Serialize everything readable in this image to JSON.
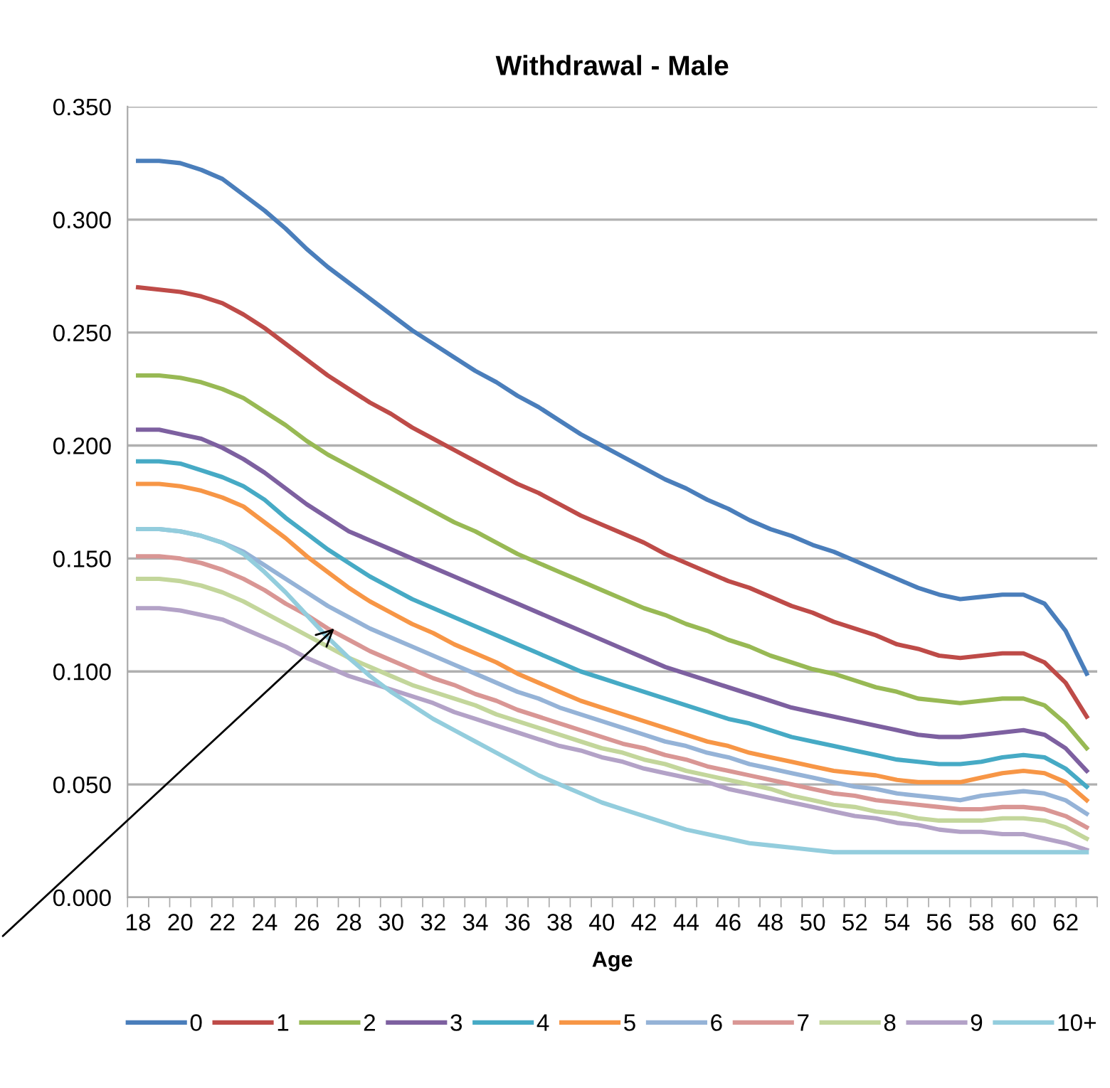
{
  "chart_data": {
    "type": "line",
    "title": "Withdrawal - Male",
    "xlabel": "Age",
    "categories": [
      "18",
      null,
      "20",
      null,
      "22",
      null,
      "24",
      null,
      "26",
      null,
      "28",
      null,
      "30",
      null,
      "32",
      null,
      "34",
      null,
      "36",
      null,
      "38",
      null,
      "40",
      null,
      "42",
      null,
      "44",
      null,
      "46",
      null,
      "48",
      null,
      "50",
      null,
      "52",
      null,
      "54",
      null,
      "56",
      null,
      "58",
      null,
      "60",
      null,
      "62",
      null
    ],
    "ylim": [
      0,
      0.35
    ],
    "yticks": [
      {
        "value": 0,
        "label": "0.000"
      },
      {
        "value": 0.05,
        "label": "0.050"
      },
      {
        "value": 0.1,
        "label": "0.100"
      },
      {
        "value": 0.15,
        "label": "0.150"
      },
      {
        "value": 0.2,
        "label": "0.200"
      },
      {
        "value": 0.25,
        "label": "0.250"
      },
      {
        "value": 0.3,
        "label": "0.300"
      },
      {
        "value": 0.35,
        "label": "0.350"
      }
    ],
    "grid": "y",
    "legend": "bottom",
    "marker": "none",
    "line_style": "solid",
    "series": [
      {
        "name": "0",
        "color": "#4a7ebb",
        "values": [
          0.326,
          0.326,
          0.325,
          0.322,
          0.318,
          0.311,
          0.304,
          0.296,
          0.287,
          0.279,
          0.272,
          0.265,
          0.258,
          0.251,
          0.245,
          0.239,
          0.233,
          0.228,
          0.222,
          0.217,
          0.211,
          0.205,
          0.2,
          0.195,
          0.19,
          0.185,
          0.181,
          0.176,
          0.172,
          0.167,
          0.163,
          0.16,
          0.156,
          0.153,
          0.149,
          0.145,
          0.141,
          0.137,
          0.134,
          0.132,
          0.133,
          0.134,
          0.134,
          0.13,
          0.118,
          0.099
        ]
      },
      {
        "name": "1",
        "color": "#be4b48",
        "values": [
          0.27,
          0.269,
          0.268,
          0.266,
          0.263,
          0.258,
          0.252,
          0.245,
          0.238,
          0.231,
          0.225,
          0.219,
          0.214,
          0.208,
          0.203,
          0.198,
          0.193,
          0.188,
          0.183,
          0.179,
          0.174,
          0.169,
          0.165,
          0.161,
          0.157,
          0.152,
          0.148,
          0.144,
          0.14,
          0.137,
          0.133,
          0.129,
          0.126,
          0.122,
          0.119,
          0.116,
          0.112,
          0.11,
          0.107,
          0.106,
          0.107,
          0.108,
          0.108,
          0.104,
          0.095,
          0.08
        ]
      },
      {
        "name": "2",
        "color": "#98b954",
        "values": [
          0.231,
          0.231,
          0.23,
          0.228,
          0.225,
          0.221,
          0.215,
          0.209,
          0.202,
          0.196,
          0.191,
          0.186,
          0.181,
          0.176,
          0.171,
          0.166,
          0.162,
          0.157,
          0.152,
          0.148,
          0.144,
          0.14,
          0.136,
          0.132,
          0.128,
          0.125,
          0.121,
          0.118,
          0.114,
          0.111,
          0.107,
          0.104,
          0.101,
          0.099,
          0.096,
          0.093,
          0.091,
          0.088,
          0.087,
          0.086,
          0.087,
          0.088,
          0.088,
          0.085,
          0.077,
          0.066
        ]
      },
      {
        "name": "3",
        "color": "#7d60a0",
        "values": [
          0.207,
          0.207,
          0.205,
          0.203,
          0.199,
          0.194,
          0.188,
          0.181,
          0.174,
          0.168,
          0.162,
          0.158,
          0.154,
          0.15,
          0.146,
          0.142,
          0.138,
          0.134,
          0.13,
          0.126,
          0.122,
          0.118,
          0.114,
          0.11,
          0.106,
          0.102,
          0.099,
          0.096,
          0.093,
          0.09,
          0.087,
          0.084,
          0.082,
          0.08,
          0.078,
          0.076,
          0.074,
          0.072,
          0.071,
          0.071,
          0.072,
          0.073,
          0.074,
          0.072,
          0.066,
          0.056
        ]
      },
      {
        "name": "4",
        "color": "#46aac5",
        "values": [
          0.193,
          0.193,
          0.192,
          0.189,
          0.186,
          0.182,
          0.176,
          0.168,
          0.161,
          0.154,
          0.148,
          0.142,
          0.137,
          0.132,
          0.128,
          0.124,
          0.12,
          0.116,
          0.112,
          0.108,
          0.104,
          0.1,
          0.097,
          0.094,
          0.091,
          0.088,
          0.085,
          0.082,
          0.079,
          0.077,
          0.074,
          0.071,
          0.069,
          0.067,
          0.065,
          0.063,
          0.061,
          0.06,
          0.059,
          0.059,
          0.06,
          0.062,
          0.063,
          0.062,
          0.057,
          0.049
        ]
      },
      {
        "name": "5",
        "color": "#f79646",
        "values": [
          0.183,
          0.183,
          0.182,
          0.18,
          0.177,
          0.173,
          0.166,
          0.159,
          0.151,
          0.144,
          0.137,
          0.131,
          0.126,
          0.121,
          0.117,
          0.112,
          0.108,
          0.104,
          0.099,
          0.095,
          0.091,
          0.087,
          0.084,
          0.081,
          0.078,
          0.075,
          0.072,
          0.069,
          0.067,
          0.064,
          0.062,
          0.06,
          0.058,
          0.056,
          0.055,
          0.054,
          0.052,
          0.051,
          0.051,
          0.051,
          0.053,
          0.055,
          0.056,
          0.055,
          0.051,
          0.043
        ]
      },
      {
        "name": "6",
        "color": "#95b3d7",
        "values": [
          0.163,
          0.163,
          0.162,
          0.16,
          0.157,
          0.153,
          0.147,
          0.141,
          0.135,
          0.129,
          0.124,
          0.119,
          0.115,
          0.111,
          0.107,
          0.103,
          0.099,
          0.095,
          0.091,
          0.088,
          0.084,
          0.081,
          0.078,
          0.075,
          0.072,
          0.069,
          0.067,
          0.064,
          0.062,
          0.059,
          0.057,
          0.055,
          0.053,
          0.051,
          0.049,
          0.048,
          0.046,
          0.045,
          0.044,
          0.043,
          0.045,
          0.046,
          0.047,
          0.046,
          0.043,
          0.037
        ]
      },
      {
        "name": "7",
        "color": "#d99694",
        "values": [
          0.151,
          0.151,
          0.15,
          0.148,
          0.145,
          0.141,
          0.136,
          0.13,
          0.125,
          0.119,
          0.114,
          0.109,
          0.105,
          0.101,
          0.097,
          0.094,
          0.09,
          0.087,
          0.083,
          0.08,
          0.077,
          0.074,
          0.071,
          0.068,
          0.066,
          0.063,
          0.061,
          0.058,
          0.056,
          0.054,
          0.052,
          0.05,
          0.048,
          0.046,
          0.045,
          0.043,
          0.042,
          0.041,
          0.04,
          0.039,
          0.039,
          0.04,
          0.04,
          0.039,
          0.036,
          0.031
        ]
      },
      {
        "name": "8",
        "color": "#c3d69b",
        "values": [
          0.141,
          0.141,
          0.14,
          0.138,
          0.135,
          0.131,
          0.126,
          0.121,
          0.116,
          0.111,
          0.106,
          0.102,
          0.098,
          0.094,
          0.091,
          0.088,
          0.085,
          0.081,
          0.078,
          0.075,
          0.072,
          0.069,
          0.066,
          0.064,
          0.061,
          0.059,
          0.056,
          0.054,
          0.052,
          0.05,
          0.048,
          0.045,
          0.043,
          0.041,
          0.04,
          0.038,
          0.037,
          0.035,
          0.034,
          0.034,
          0.034,
          0.035,
          0.035,
          0.034,
          0.031,
          0.026
        ]
      },
      {
        "name": "9",
        "color": "#b3a2c7",
        "values": [
          0.128,
          0.128,
          0.127,
          0.125,
          0.123,
          0.119,
          0.115,
          0.111,
          0.106,
          0.102,
          0.098,
          0.095,
          0.092,
          0.089,
          0.086,
          0.082,
          0.079,
          0.076,
          0.073,
          0.07,
          0.067,
          0.065,
          0.062,
          0.06,
          0.057,
          0.055,
          0.053,
          0.051,
          0.048,
          0.046,
          0.044,
          0.042,
          0.04,
          0.038,
          0.036,
          0.035,
          0.033,
          0.032,
          0.03,
          0.029,
          0.029,
          0.028,
          0.028,
          0.026,
          0.024,
          0.021
        ]
      },
      {
        "name": "10+",
        "color": "#93cddd",
        "values": [
          0.163,
          0.163,
          0.162,
          0.16,
          0.157,
          0.152,
          0.144,
          0.135,
          0.125,
          0.115,
          0.106,
          0.098,
          0.091,
          0.085,
          0.079,
          0.074,
          0.069,
          0.064,
          0.059,
          0.054,
          0.05,
          0.046,
          0.042,
          0.039,
          0.036,
          0.033,
          0.03,
          0.028,
          0.026,
          0.024,
          0.023,
          0.022,
          0.021,
          0.02,
          0.02,
          0.02,
          0.02,
          0.02,
          0.02,
          0.02,
          0.02,
          0.02,
          0.02,
          0.02,
          0.02,
          0.02
        ]
      }
    ]
  }
}
